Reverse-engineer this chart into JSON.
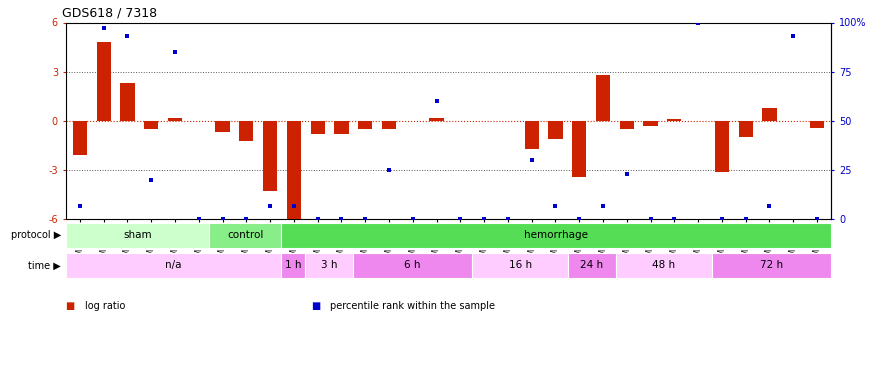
{
  "title": "GDS618 / 7318",
  "samples": [
    "GSM16636",
    "GSM16640",
    "GSM16641",
    "GSM16642",
    "GSM16643",
    "GSM16644",
    "GSM16637",
    "GSM16638",
    "GSM16639",
    "GSM16645",
    "GSM16646",
    "GSM16647",
    "GSM16648",
    "GSM16649",
    "GSM16650",
    "GSM16651",
    "GSM16652",
    "GSM16653",
    "GSM16654",
    "GSM16655",
    "GSM16656",
    "GSM16657",
    "GSM16658",
    "GSM16659",
    "GSM16660",
    "GSM16661",
    "GSM16662",
    "GSM16663",
    "GSM16664",
    "GSM16666",
    "GSM16667",
    "GSM16668"
  ],
  "log_ratio": [
    -2.1,
    4.8,
    2.3,
    -0.5,
    0.2,
    0.0,
    -0.7,
    -1.2,
    -4.3,
    -6.0,
    -0.8,
    -0.8,
    -0.5,
    -0.5,
    0.0,
    0.2,
    0.0,
    0.0,
    0.0,
    -1.7,
    -1.1,
    -3.4,
    2.8,
    -0.5,
    -0.3,
    0.1,
    0.0,
    -3.1,
    -1.0,
    0.8,
    0.0,
    -0.4
  ],
  "percentile_rank": [
    7,
    97,
    93,
    20,
    85,
    0,
    0,
    0,
    7,
    7,
    0,
    0,
    0,
    25,
    0,
    60,
    0,
    0,
    0,
    30,
    7,
    0,
    7,
    23,
    0,
    0,
    100,
    0,
    0,
    7,
    93,
    0
  ],
  "ylim": [
    -6,
    6
  ],
  "y_left_ticks": [
    -6,
    -3,
    0,
    3,
    6
  ],
  "y_right_ticks": [
    0,
    25,
    50,
    75,
    100
  ],
  "bar_color": "#cc2200",
  "dot_color": "#0000cc",
  "bg_color": "#ffffff",
  "protocol_groups": [
    {
      "label": "sham",
      "start": 0,
      "end": 5,
      "color": "#ccffcc"
    },
    {
      "label": "control",
      "start": 6,
      "end": 8,
      "color": "#88ee88"
    },
    {
      "label": "hemorrhage",
      "start": 9,
      "end": 31,
      "color": "#55dd55"
    }
  ],
  "time_groups": [
    {
      "label": "n/a",
      "start": 0,
      "end": 8,
      "color": "#ffccff"
    },
    {
      "label": "1 h",
      "start": 9,
      "end": 9,
      "color": "#ee88ee"
    },
    {
      "label": "3 h",
      "start": 10,
      "end": 11,
      "color": "#ffccff"
    },
    {
      "label": "6 h",
      "start": 12,
      "end": 16,
      "color": "#ee88ee"
    },
    {
      "label": "16 h",
      "start": 17,
      "end": 20,
      "color": "#ffccff"
    },
    {
      "label": "24 h",
      "start": 21,
      "end": 22,
      "color": "#ee88ee"
    },
    {
      "label": "48 h",
      "start": 23,
      "end": 26,
      "color": "#ffccff"
    },
    {
      "label": "72 h",
      "start": 27,
      "end": 31,
      "color": "#ee88ee"
    }
  ],
  "legend_items": [
    {
      "label": "log ratio",
      "color": "#cc2200"
    },
    {
      "label": "percentile rank within the sample",
      "color": "#0000cc"
    }
  ]
}
